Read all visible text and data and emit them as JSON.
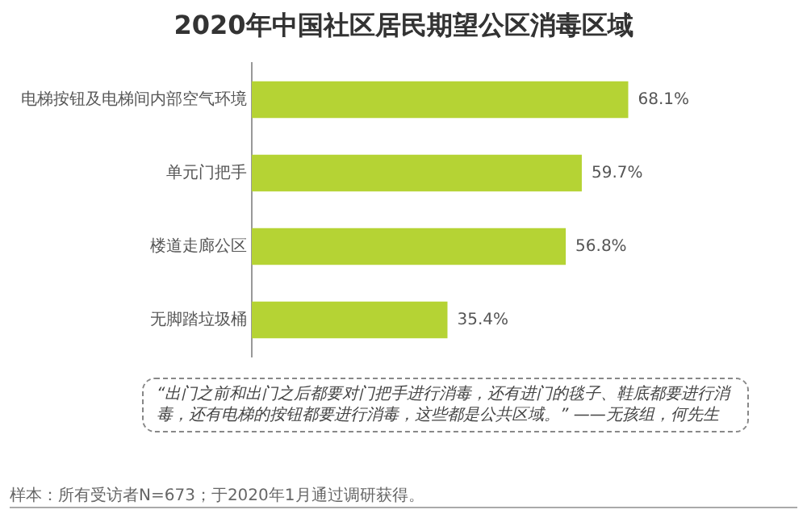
{
  "chart_data": {
    "type": "bar",
    "orientation": "horizontal",
    "title": "2020年中国社区居民期望公区消毒区域",
    "categories": [
      "电梯按钮及电梯间内部空气环境",
      "单元门把手",
      "楼道走廊公区",
      "无脚踏垃圾桶"
    ],
    "values": [
      68.1,
      59.7,
      56.8,
      35.4
    ],
    "color": "#b5d334",
    "data_labels": true,
    "grid": false,
    "legend": false,
    "value_labels": [
      "68.1%",
      "59.7%",
      "56.8%",
      "35.4%"
    ],
    "annotations": [
      "“出门之前和出门之后都要对门把手进行消毒，还有进门的毯子、鞋底都要进行消毒，还有电梯的按钮都要进行消毒，这些都是公共区域。” ——无孩组，何先生",
      "样本：所有受访者N=673；于2020年1月通过调研获得。"
    ]
  }
}
